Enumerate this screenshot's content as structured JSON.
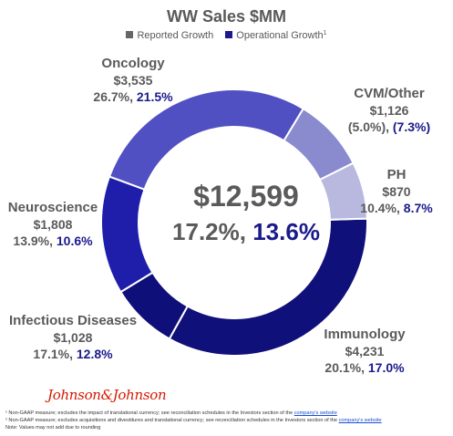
{
  "chart_data": {
    "type": "pie",
    "title": "WW Sales $MM",
    "legend": [
      {
        "name": "Reported Growth",
        "color": "#666666"
      },
      {
        "name": "Operational Growth",
        "color": "#1a1a8c",
        "ref": "1"
      }
    ],
    "center": {
      "total": "$12,599",
      "reported": "17.2%,",
      "operational": "13.6%"
    },
    "segments": [
      {
        "name": "Immunology",
        "value": 4231,
        "sales": "$4,231",
        "reported": "20.1%,",
        "operational": "17.0%",
        "color": "#10107a"
      },
      {
        "name": "Infectious Diseases",
        "value": 1028,
        "sales": "$1,028",
        "reported": "17.1%,",
        "operational": "12.8%",
        "color": "#0f0f7a"
      },
      {
        "name": "Neuroscience",
        "value": 1808,
        "sales": "$1,808",
        "reported": "13.9%,",
        "operational": "10.6%",
        "color": "#1e1eaa"
      },
      {
        "name": "Oncology",
        "value": 3535,
        "sales": "$3,535",
        "reported": "26.7%,",
        "operational": "21.5%",
        "color": "#5050c2"
      },
      {
        "name": "CVM/Other",
        "value": 1126,
        "sales": "$1,126",
        "reported": "(5.0%),",
        "operational": "(7.3%)",
        "color": "#8a8acf"
      },
      {
        "name": "PH",
        "value": 870,
        "sales": "$870",
        "reported": "10.4%,",
        "operational": "8.7%",
        "color": "#b9b9df"
      }
    ]
  },
  "footer": {
    "logo_text": "Johnson&Johnson",
    "note1_prefix": "¹ Non-GAAP measure; excludes the impact of translational currency; see reconciliation schedules in the Investors section of the",
    "note1_link": "company's website",
    "note2_prefix": "² Non-GAAP measure; excludes acquisitions and divestitures and translational currency; see reconciliation schedules in the Investors section of the",
    "note2_link": "company's website",
    "note3": "Note: Values may not add due to rounding"
  }
}
